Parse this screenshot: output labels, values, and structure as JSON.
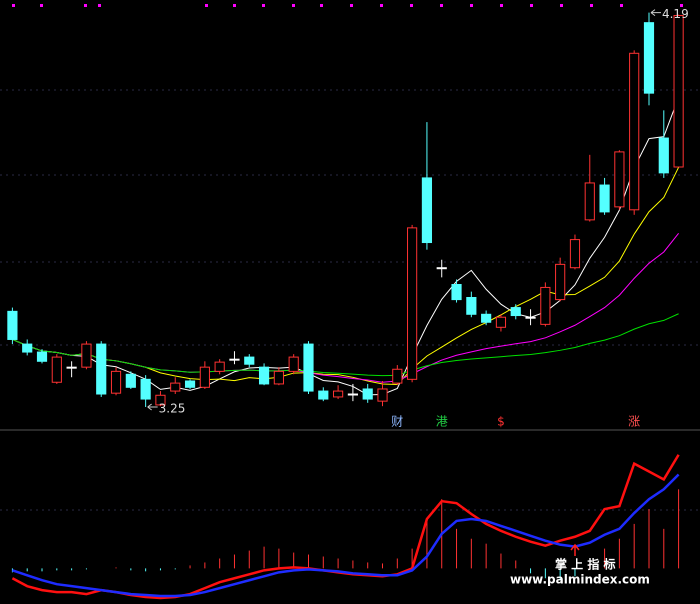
{
  "chart_data": {
    "type": "candlestick",
    "categories": [
      null,
      null,
      null,
      null,
      null,
      null,
      null,
      null,
      null,
      null,
      null,
      null,
      null,
      null,
      null,
      null,
      null,
      null,
      null,
      null,
      null,
      null,
      null,
      null,
      null,
      null,
      null,
      null,
      null,
      null,
      null,
      null,
      null,
      null,
      null,
      null,
      null,
      null,
      null,
      null,
      null,
      null,
      null,
      null,
      null,
      null
    ],
    "open": [
      3.478,
      3.4,
      3.381,
      3.309,
      3.345,
      3.345,
      3.4,
      3.283,
      3.328,
      3.316,
      3.255,
      3.288,
      3.312,
      3.297,
      3.335,
      3.364,
      3.369,
      3.345,
      3.305,
      3.335,
      3.4,
      3.288,
      3.274,
      3.281,
      3.293,
      3.264,
      3.307,
      3.316,
      3.796,
      3.582,
      3.542,
      3.511,
      3.471,
      3.44,
      3.487,
      3.464,
      3.447,
      3.506,
      3.582,
      3.696,
      3.779,
      3.727,
      3.72,
      4.166,
      3.891,
      3.822
    ],
    "close": [
      3.411,
      3.381,
      3.359,
      3.369,
      3.345,
      3.4,
      3.281,
      3.335,
      3.297,
      3.269,
      3.278,
      3.307,
      3.297,
      3.345,
      3.357,
      3.364,
      3.352,
      3.305,
      3.335,
      3.369,
      3.288,
      3.269,
      3.288,
      3.281,
      3.269,
      3.293,
      3.34,
      3.677,
      3.642,
      3.582,
      3.506,
      3.471,
      3.452,
      3.464,
      3.468,
      3.464,
      3.535,
      3.59,
      3.649,
      3.784,
      3.715,
      3.858,
      4.093,
      3.998,
      3.808,
      4.183
    ],
    "high": [
      3.487,
      3.411,
      3.388,
      3.376,
      3.359,
      3.407,
      3.407,
      3.345,
      3.335,
      3.326,
      3.288,
      3.321,
      3.316,
      3.359,
      3.364,
      3.383,
      3.376,
      3.354,
      3.345,
      3.376,
      3.407,
      3.297,
      3.302,
      3.305,
      3.305,
      3.312,
      3.35,
      3.684,
      3.929,
      3.601,
      3.554,
      3.525,
      3.48,
      3.471,
      3.495,
      3.483,
      3.547,
      3.606,
      3.661,
      3.851,
      3.796,
      3.862,
      4.1,
      4.19,
      3.957,
      4.185
    ],
    "low": [
      3.4,
      3.373,
      3.354,
      3.305,
      3.321,
      3.34,
      3.274,
      3.278,
      3.293,
      3.25,
      3.252,
      3.281,
      3.293,
      3.293,
      3.328,
      3.352,
      3.345,
      3.302,
      3.302,
      3.328,
      3.281,
      3.264,
      3.269,
      3.264,
      3.26,
      3.252,
      3.302,
      3.309,
      3.625,
      3.559,
      3.499,
      3.464,
      3.445,
      3.43,
      3.459,
      3.445,
      3.442,
      3.502,
      3.578,
      3.692,
      3.708,
      3.72,
      3.708,
      3.969,
      3.796,
      3.822
    ],
    "up_color": "#ff3232",
    "down_color": "#54ffff",
    "flat_color": "#ffffff",
    "ylim": [
      3.2,
      4.22
    ],
    "low_label": 3.25,
    "high_label": 4.19,
    "moving_averages": [
      {
        "period": 5,
        "color": "#ffffff"
      },
      {
        "period": 10,
        "color": "#ffff00"
      },
      {
        "period": 20,
        "color": "#ff00ff"
      },
      {
        "period": 60,
        "color": "#00e000"
      }
    ],
    "event_labels": [
      null,
      null,
      null,
      null,
      null,
      null,
      null,
      null,
      null,
      null,
      null,
      null,
      null,
      null,
      null,
      null,
      null,
      null,
      null,
      null,
      null,
      null,
      null,
      null,
      null,
      null,
      "财",
      null,
      null,
      "港",
      null,
      null,
      null,
      "$",
      null,
      null,
      null,
      null,
      null,
      null,
      null,
      null,
      "涨",
      null,
      null,
      null
    ],
    "event_colors": [
      null,
      null,
      null,
      null,
      null,
      null,
      null,
      null,
      null,
      null,
      null,
      null,
      null,
      null,
      null,
      null,
      null,
      null,
      null,
      null,
      null,
      null,
      null,
      null,
      null,
      null,
      "#8fb8ff",
      null,
      null,
      "#22cc44",
      null,
      null,
      null,
      "#ff3232",
      null,
      null,
      null,
      null,
      null,
      null,
      null,
      null,
      "#ff5050",
      null,
      null,
      null
    ],
    "indicator": {
      "ylim": [
        -32,
        138
      ],
      "histogram": [
        -4,
        -3,
        -3,
        -2,
        -2,
        -1,
        0,
        1,
        -2,
        -3,
        -2,
        -1,
        3,
        6,
        10,
        14,
        18,
        22,
        20,
        16,
        14,
        12,
        10,
        8,
        6,
        5,
        10,
        20,
        50,
        70,
        40,
        30,
        25,
        15,
        8,
        -5,
        -10,
        -12,
        -8,
        5,
        20,
        30,
        45,
        60,
        40,
        80
      ],
      "series": [
        {
          "color": "#ff1010",
          "values": [
            -10,
            -18,
            -22,
            -24,
            -24,
            -26,
            -22,
            -24,
            -27,
            -29,
            -30,
            -29,
            -26,
            -20,
            -14,
            -10,
            -6,
            -2,
            0,
            1,
            0,
            -2,
            -4,
            -6,
            -7,
            -8,
            -6,
            0,
            50,
            68,
            66,
            55,
            45,
            38,
            32,
            27,
            23,
            28,
            32,
            38,
            60,
            63,
            106,
            98,
            90,
            115
          ]
        },
        {
          "color": "#1e2cff",
          "values": [
            -2,
            -7,
            -12,
            -16,
            -18,
            -20,
            -22,
            -24,
            -26,
            -27,
            -28,
            -28,
            -27,
            -24,
            -20,
            -16,
            -12,
            -8,
            -4,
            -2,
            -1,
            -2,
            -3,
            -5,
            -6,
            -7,
            -7,
            -2,
            12,
            35,
            48,
            50,
            48,
            43,
            38,
            33,
            28,
            24,
            22,
            26,
            34,
            40,
            56,
            70,
            80,
            95
          ]
        }
      ]
    },
    "watermark": "掌 上 指 标",
    "site": "www.palmindex.com"
  }
}
